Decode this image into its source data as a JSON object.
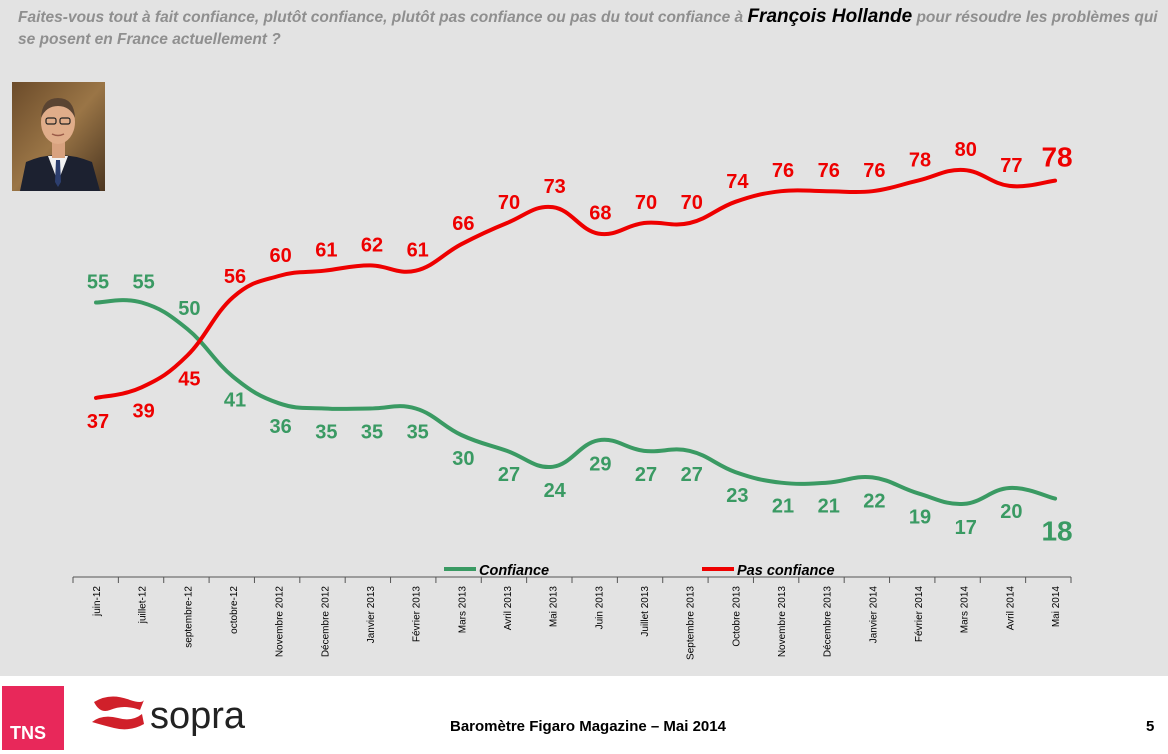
{
  "question": {
    "before": "Faites-vous tout à fait confiance, plutôt confiance, plutôt pas confiance ou pas du tout confiance à ",
    "person": "François Hollande",
    "after": " pour résoudre les problèmes qui se posent en France actuellement ?"
  },
  "footer": {
    "title": "Baromètre Figaro Magazine – Mai 2014",
    "page_number": "5",
    "logo_tns": "TNS",
    "logo_sopra": "sopra"
  },
  "colors": {
    "confiance": "#3a9a63",
    "pas_confiance": "#ee0000",
    "background": "#e3e3e3"
  },
  "chart_data": {
    "type": "line",
    "categories": [
      "juin-12",
      "juillet-12",
      "septembre-12",
      "octobre-12",
      "Novembre 2012",
      "Décembre 2012",
      "Janvier 2013",
      "Février 2013",
      "Mars 2013",
      "Avril 2013",
      "Mai 2013",
      "Juin 2013",
      "Juillet 2013",
      "Septembre 2013",
      "Octobre 2013",
      "Novembre 2013",
      "Décembre 2013",
      "Janvier 2014",
      "Février 2014",
      "Mars 2014",
      "Avril 2014",
      "Mai 2014"
    ],
    "series": [
      {
        "name": "Confiance",
        "color": "#3a9a63",
        "values": [
          55,
          55,
          50,
          41,
          36,
          35,
          35,
          35,
          30,
          27,
          24,
          29,
          27,
          27,
          23,
          21,
          21,
          22,
          19,
          17,
          20,
          18
        ]
      },
      {
        "name": "Pas confiance",
        "color": "#ee0000",
        "values": [
          37,
          39,
          45,
          56,
          60,
          61,
          62,
          61,
          66,
          70,
          73,
          68,
          70,
          70,
          74,
          76,
          76,
          76,
          78,
          80,
          77,
          78
        ]
      }
    ],
    "legend_position": "bottom",
    "grid": false
  }
}
